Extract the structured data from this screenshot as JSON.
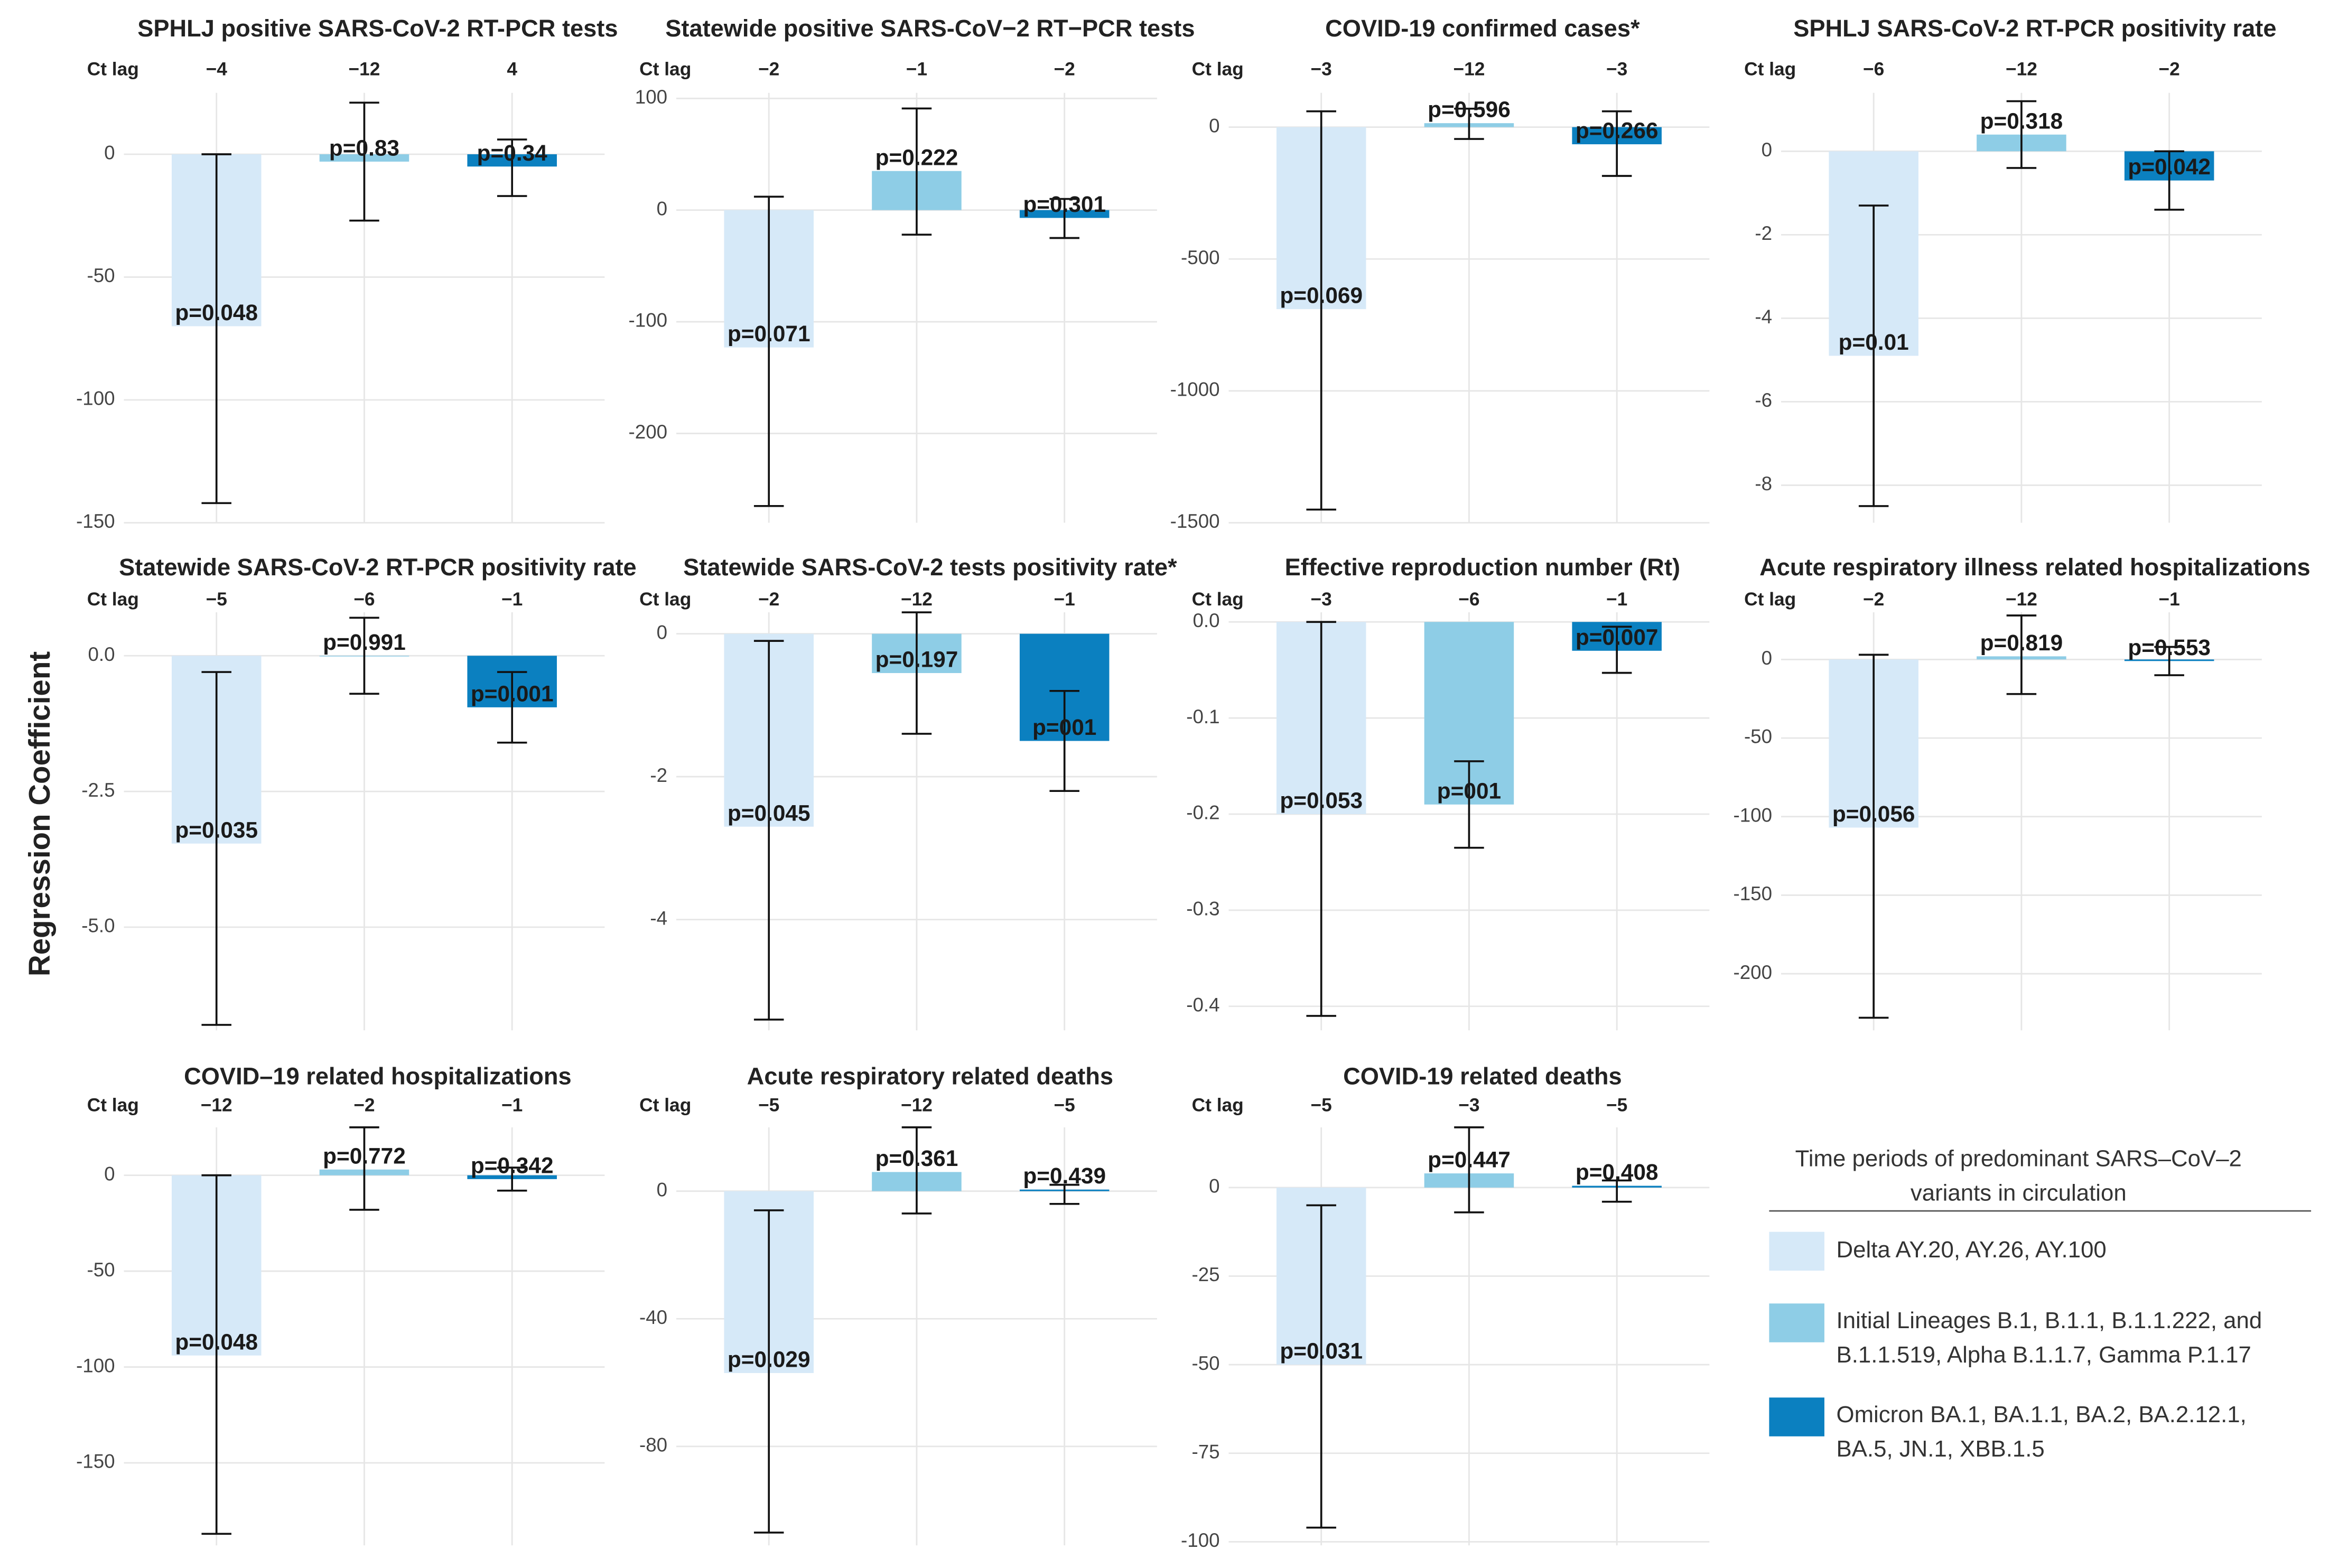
{
  "y_label": "Regression Coefficient",
  "legend": {
    "title_lines": [
      "Time periods of predominant SARS–CoV–2",
      "variants in circulation"
    ],
    "series": [
      {
        "label_lines": [
          "Delta AY.20, AY.26, AY.100"
        ],
        "color": "#d6e9f8"
      },
      {
        "label_lines": [
          "Initial Lineages B.1, B.1.1, B.1.1.222, and",
          "B.1.1.519, Alpha B.1.1.7, Gamma P.1.17"
        ],
        "color": "#8ecde6"
      },
      {
        "label_lines": [
          "Omicron BA.1, BA.1.1, BA.2, BA.2.12.1,",
          "BA.5, JN.1, XBB.1.5"
        ],
        "color": "#0b80c0"
      }
    ]
  },
  "chart_data": [
    {
      "type": "bar",
      "title": "SPHLJ positive SARS-CoV-2 RT-PCR tests",
      "ct_lag_label": "Ct lag",
      "ct_lags": [
        "−4",
        "−12",
        "4"
      ],
      "values": [
        -70,
        -3,
        -5
      ],
      "ci_low": [
        -142,
        -27,
        -17
      ],
      "ci_high": [
        0,
        21,
        6
      ],
      "p_labels": [
        "p=0.048",
        "p=0.83",
        "p=0.34"
      ],
      "ylim": [
        -150,
        25
      ],
      "yticks": [
        0,
        -50,
        -100,
        -150
      ],
      "grid": true
    },
    {
      "type": "bar",
      "title": "Statewide positive SARS-CoV−2 RT−PCR tests",
      "ct_lag_label": "Ct lag",
      "ct_lags": [
        "−2",
        "−1",
        "−2"
      ],
      "values": [
        -123,
        35,
        -7
      ],
      "ci_low": [
        -265,
        -22,
        -25
      ],
      "ci_high": [
        12,
        91,
        10
      ],
      "p_labels": [
        "p=0.071",
        "p=0.222",
        "p=0.301"
      ],
      "ylim": [
        -280,
        105
      ],
      "yticks": [
        100,
        0,
        -100,
        -200
      ],
      "grid": true
    },
    {
      "type": "bar",
      "title": "COVID-19 confirmed cases*",
      "ct_lag_label": "Ct lag",
      "ct_lags": [
        "−3",
        "−12",
        "−3"
      ],
      "values": [
        -690,
        15,
        -65
      ],
      "ci_low": [
        -1450,
        -45,
        -185
      ],
      "ci_high": [
        60,
        70,
        60
      ],
      "p_labels": [
        "p=0.069",
        "p=0.596",
        "p=0.266"
      ],
      "ylim": [
        -1500,
        130
      ],
      "yticks": [
        0,
        -500,
        -1000,
        -1500
      ],
      "grid": true
    },
    {
      "type": "bar",
      "title": "SPHLJ SARS-CoV-2 RT-PCR positivity rate",
      "ct_lag_label": "Ct lag",
      "ct_lags": [
        "−6",
        "−12",
        "−2"
      ],
      "values": [
        -4.9,
        0.4,
        -0.7
      ],
      "ci_low": [
        -8.5,
        -0.4,
        -1.4
      ],
      "ci_high": [
        -1.3,
        1.2,
        0
      ],
      "p_labels": [
        "p=0.01",
        "p=0.318",
        "p=0.042"
      ],
      "ylim": [
        -8.9,
        1.4
      ],
      "yticks": [
        0,
        -2,
        -4,
        -6,
        -8
      ],
      "grid": true
    },
    {
      "type": "bar",
      "title": "Statewide SARS-CoV-2 RT-PCR positivity rate",
      "ct_lag_label": "Ct lag",
      "ct_lags": [
        "−5",
        "−6",
        "−1"
      ],
      "values": [
        -3.46,
        0,
        -0.95
      ],
      "ci_low": [
        -6.8,
        -0.7,
        -1.6
      ],
      "ci_high": [
        -0.3,
        0.7,
        -0.3
      ],
      "p_labels": [
        "p=0.035",
        "p=0.991",
        "p=0.001"
      ],
      "ylim": [
        -6.9,
        0.8
      ],
      "yticks": [
        {
          "value": 0,
          "label": "0.0"
        },
        -2.5,
        {
          "value": -5,
          "label": "-5.0"
        }
      ],
      "grid": true
    },
    {
      "type": "bar",
      "title": "Statewide SARS-CoV-2 tests positivity rate*",
      "ct_lag_label": "Ct lag",
      "ct_lags": [
        "−2",
        "−12",
        "−1"
      ],
      "values": [
        -2.7,
        -0.55,
        -1.5
      ],
      "ci_low": [
        -5.4,
        -1.4,
        -2.2
      ],
      "ci_high": [
        -0.1,
        0.3,
        -0.8
      ],
      "p_labels": [
        "p=0.045",
        "p=0.197",
        "p=001"
      ],
      "ylim": [
        -5.55,
        0.3
      ],
      "yticks": [
        0,
        -2,
        -4
      ],
      "grid": true
    },
    {
      "type": "bar",
      "title": "Effective reproduction number (Rt)",
      "ct_lag_label": "Ct lag",
      "ct_lags": [
        "−3",
        "−6",
        "−1"
      ],
      "values": [
        -0.2,
        -0.19,
        -0.03
      ],
      "ci_low": [
        -0.41,
        -0.235,
        -0.053
      ],
      "ci_high": [
        0,
        -0.145,
        -0.005
      ],
      "p_labels": [
        "p=0.053",
        "p=001",
        "p=0.007"
      ],
      "ylim": [
        -0.425,
        0.01
      ],
      "yticks": [
        {
          "value": 0,
          "label": "0.0"
        },
        -0.1,
        -0.2,
        -0.3,
        -0.4
      ],
      "grid": true
    },
    {
      "type": "bar",
      "title": "Acute respiratory illness related hospitalizations",
      "ct_lag_label": "Ct lag",
      "ct_lags": [
        "−2",
        "−12",
        "−1"
      ],
      "values": [
        -107,
        2,
        -1
      ],
      "ci_low": [
        -228,
        -22,
        -10
      ],
      "ci_high": [
        3,
        28,
        8
      ],
      "p_labels": [
        "p=0.056",
        "p=0.819",
        "p=0.553"
      ],
      "ylim": [
        -236,
        30
      ],
      "yticks": [
        0,
        -50,
        -100,
        -150,
        -200
      ],
      "grid": true
    },
    {
      "type": "bar",
      "title": "COVID–19 related hospitalizations",
      "ct_lag_label": "Ct lag",
      "ct_lags": [
        "−12",
        "−2",
        "−1"
      ],
      "values": [
        -94,
        3,
        -2
      ],
      "ci_low": [
        -187,
        -18,
        -8
      ],
      "ci_high": [
        0,
        25,
        4
      ],
      "p_labels": [
        "p=0.048",
        "p=0.772",
        "p=0.342"
      ],
      "ylim": [
        -193,
        25
      ],
      "yticks": [
        0,
        -50,
        -100,
        -150
      ],
      "grid": true
    },
    {
      "type": "bar",
      "title": "Acute respiratory related deaths",
      "ct_lag_label": "Ct lag",
      "ct_lags": [
        "−5",
        "−12",
        "−5"
      ],
      "values": [
        -57,
        6,
        0.5
      ],
      "ci_low": [
        -107,
        -7,
        -4
      ],
      "ci_high": [
        -6,
        20,
        2
      ],
      "p_labels": [
        "p=0.029",
        "p=0.361",
        "p=0.439"
      ],
      "ylim": [
        -111,
        20
      ],
      "yticks": [
        0,
        -40,
        -80
      ],
      "grid": true
    },
    {
      "type": "bar",
      "title": "COVID-19 related deaths",
      "ct_lag_label": "Ct lag",
      "ct_lags": [
        "−5",
        "−3",
        "−5"
      ],
      "values": [
        -50,
        4,
        0.5
      ],
      "ci_low": [
        -96,
        -7,
        -4
      ],
      "ci_high": [
        -5,
        17,
        2
      ],
      "p_labels": [
        "p=0.031",
        "p=0.447",
        "p=0.408"
      ],
      "ylim": [
        -101,
        17
      ],
      "yticks": [
        0,
        -25,
        -50,
        -75,
        -100
      ],
      "grid": true
    }
  ]
}
